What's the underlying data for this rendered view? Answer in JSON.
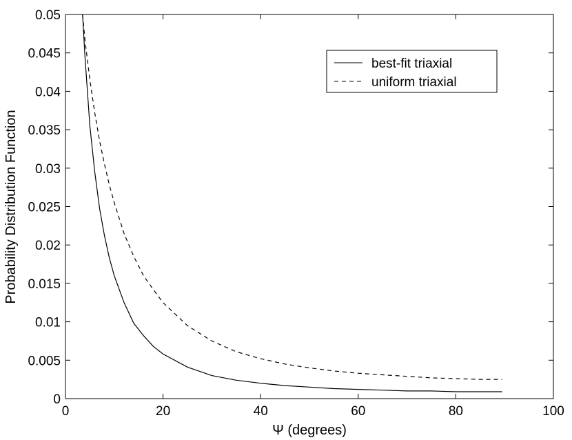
{
  "chart_data": {
    "type": "line",
    "title": "",
    "xlabel": "Ψ (degrees)",
    "ylabel": "Probability Distribution Function",
    "xlim": [
      0,
      100
    ],
    "ylim": [
      0,
      0.05
    ],
    "xticks": [
      0,
      20,
      40,
      60,
      80,
      100
    ],
    "xtick_labels": [
      "0",
      "20",
      "40",
      "60",
      "80",
      "100"
    ],
    "yticks": [
      0,
      0.005,
      0.01,
      0.015,
      0.02,
      0.025,
      0.03,
      0.035,
      0.04,
      0.045,
      0.05
    ],
    "ytick_labels": [
      "0",
      "0.005",
      "0.01",
      "0.015",
      "0.02",
      "0.025",
      "0.03",
      "0.035",
      "0.04",
      "0.045",
      "0.05"
    ],
    "grid": false,
    "legend_position": "top-right",
    "series": [
      {
        "name": "best-fit triaxial",
        "style": "solid",
        "color": "#000000",
        "x": [
          3.5,
          4,
          5,
          6,
          7,
          8,
          9,
          10,
          12,
          14,
          16,
          18,
          20,
          25,
          30,
          35,
          40,
          45,
          50,
          55,
          60,
          65,
          70,
          75,
          80,
          85,
          89.5
        ],
        "y": [
          0.05,
          0.0445,
          0.0355,
          0.0295,
          0.0247,
          0.0212,
          0.0183,
          0.016,
          0.0125,
          0.0098,
          0.0082,
          0.0068,
          0.0058,
          0.0041,
          0.003,
          0.0024,
          0.002,
          0.0017,
          0.0015,
          0.0013,
          0.0012,
          0.0011,
          0.001,
          0.001,
          0.0009,
          0.0009,
          0.0009
        ]
      },
      {
        "name": "uniform triaxial",
        "style": "dashed",
        "color": "#000000",
        "x": [
          3.5,
          4,
          5,
          6,
          7,
          8,
          9,
          10,
          12,
          14,
          16,
          18,
          20,
          25,
          30,
          35,
          40,
          45,
          50,
          55,
          60,
          65,
          70,
          75,
          80,
          85,
          89.5
        ],
        "y": [
          0.05,
          0.0467,
          0.0415,
          0.0372,
          0.0335,
          0.0305,
          0.0278,
          0.0255,
          0.0215,
          0.0185,
          0.016,
          0.0142,
          0.0125,
          0.0095,
          0.0075,
          0.0061,
          0.0052,
          0.0045,
          0.004,
          0.0036,
          0.0033,
          0.0031,
          0.0029,
          0.0027,
          0.0026,
          0.0025,
          0.0025
        ]
      }
    ]
  }
}
